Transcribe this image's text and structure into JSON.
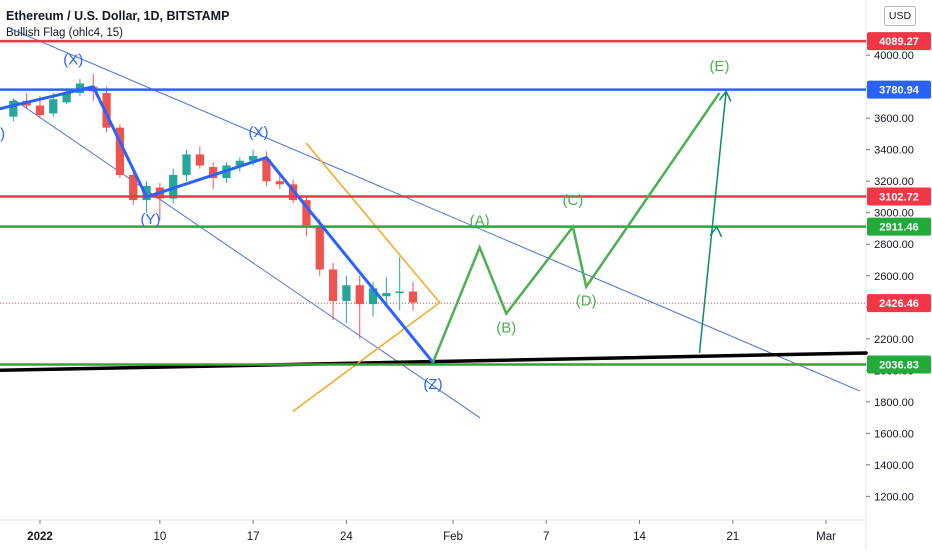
{
  "header": {
    "title": "Ethereum / U.S. Dollar, 1D, BITSTAMP",
    "indicator": "Bullish Flag (ohlc4, 15)",
    "currency": "USD"
  },
  "chart_data": {
    "type": "candlestick",
    "ylim": [
      1050,
      4350
    ],
    "xlim": [
      -2,
      63
    ],
    "y_ticks": [
      "1200.00",
      "1400.00",
      "1600.00",
      "1800.00",
      "2000.00",
      "2200.00",
      "2400.00",
      "2600.00",
      "2800.00",
      "3000.00",
      "3200.00",
      "3400.00",
      "3600.00",
      "3800.00",
      "4000.00"
    ],
    "x_ticks": [
      {
        "i": 1,
        "label": "2022",
        "bold": true
      },
      {
        "i": 10,
        "label": "10"
      },
      {
        "i": 17,
        "label": "17"
      },
      {
        "i": 24,
        "label": "24"
      },
      {
        "i": 32,
        "label": "Feb"
      },
      {
        "i": 39,
        "label": "7"
      },
      {
        "i": 46,
        "label": "14"
      },
      {
        "i": 53,
        "label": "21"
      },
      {
        "i": 60,
        "label": "Mar"
      }
    ],
    "candles": [
      {
        "i": -1,
        "o": 3610,
        "h": 3720,
        "l": 3580,
        "c": 3710
      },
      {
        "i": 0,
        "o": 3710,
        "h": 3760,
        "l": 3660,
        "c": 3680
      },
      {
        "i": 1,
        "o": 3680,
        "h": 3740,
        "l": 3600,
        "c": 3620
      },
      {
        "i": 2,
        "o": 3630,
        "h": 3760,
        "l": 3610,
        "c": 3720
      },
      {
        "i": 3,
        "o": 3700,
        "h": 3790,
        "l": 3690,
        "c": 3760
      },
      {
        "i": 4,
        "o": 3760,
        "h": 3850,
        "l": 3740,
        "c": 3820
      },
      {
        "i": 5,
        "o": 3800,
        "h": 3880,
        "l": 3710,
        "c": 3770
      },
      {
        "i": 6,
        "o": 3760,
        "h": 3800,
        "l": 3510,
        "c": 3540
      },
      {
        "i": 7,
        "o": 3540,
        "h": 3560,
        "l": 3220,
        "c": 3240
      },
      {
        "i": 8,
        "o": 3240,
        "h": 3290,
        "l": 3050,
        "c": 3080
      },
      {
        "i": 9,
        "o": 3080,
        "h": 3200,
        "l": 3000,
        "c": 3170
      },
      {
        "i": 10,
        "o": 3160,
        "h": 3190,
        "l": 2950,
        "c": 3090
      },
      {
        "i": 11,
        "o": 3090,
        "h": 3280,
        "l": 3060,
        "c": 3240
      },
      {
        "i": 12,
        "o": 3240,
        "h": 3400,
        "l": 3200,
        "c": 3370
      },
      {
        "i": 13,
        "o": 3370,
        "h": 3420,
        "l": 3280,
        "c": 3300
      },
      {
        "i": 14,
        "o": 3290,
        "h": 3320,
        "l": 3150,
        "c": 3220
      },
      {
        "i": 15,
        "o": 3220,
        "h": 3320,
        "l": 3190,
        "c": 3300
      },
      {
        "i": 16,
        "o": 3300,
        "h": 3350,
        "l": 3260,
        "c": 3330
      },
      {
        "i": 17,
        "o": 3330,
        "h": 3400,
        "l": 3300,
        "c": 3360
      },
      {
        "i": 18,
        "o": 3340,
        "h": 3390,
        "l": 3170,
        "c": 3200
      },
      {
        "i": 19,
        "o": 3200,
        "h": 3260,
        "l": 3150,
        "c": 3180
      },
      {
        "i": 20,
        "o": 3180,
        "h": 3210,
        "l": 3060,
        "c": 3080
      },
      {
        "i": 21,
        "o": 3080,
        "h": 3100,
        "l": 2850,
        "c": 2920
      },
      {
        "i": 22,
        "o": 2920,
        "h": 2960,
        "l": 2600,
        "c": 2640
      },
      {
        "i": 23,
        "o": 2640,
        "h": 2680,
        "l": 2320,
        "c": 2440
      },
      {
        "i": 24,
        "o": 2440,
        "h": 2600,
        "l": 2300,
        "c": 2540
      },
      {
        "i": 25,
        "o": 2540,
        "h": 2600,
        "l": 2200,
        "c": 2420
      },
      {
        "i": 26,
        "o": 2420,
        "h": 2560,
        "l": 2340,
        "c": 2520
      },
      {
        "i": 27,
        "o": 2470,
        "h": 2590,
        "l": 2400,
        "c": 2490
      },
      {
        "i": 28,
        "o": 2490,
        "h": 2720,
        "l": 2380,
        "c": 2500
      },
      {
        "i": 29,
        "o": 2500,
        "h": 2560,
        "l": 2380,
        "c": 2430
      }
    ],
    "horizontal_levels": [
      {
        "value": 4089.27,
        "label": "4089.27",
        "color": "#f23645"
      },
      {
        "value": 3780.94,
        "label": "3780.94",
        "color": "#2962ff"
      },
      {
        "value": 3102.72,
        "label": "3102.72",
        "color": "#f23645"
      },
      {
        "value": 2911.46,
        "label": "2911.46",
        "color": "#22ab3b"
      },
      {
        "value": 2036.83,
        "label": "2036.83",
        "color": "#22ab3b"
      }
    ],
    "price_marker": {
      "value": 2426.46,
      "label": "2426.46",
      "color": "#f23645"
    },
    "trendlines": [
      {
        "name": "upper-channel-line",
        "points": [
          [
            -1,
            4160
          ],
          [
            62.5,
            1870
          ]
        ],
        "color": "#4a72d8",
        "width": 1
      },
      {
        "name": "lower-channel-line",
        "points": [
          [
            -1,
            3720
          ],
          [
            34,
            1700
          ]
        ],
        "color": "#4a72d8",
        "width": 1
      },
      {
        "name": "support-trendline",
        "points": [
          [
            -2,
            2000
          ],
          [
            63,
            2110
          ]
        ],
        "color": "#000000",
        "width": 3.5
      },
      {
        "name": "triangle-upper-leg",
        "points": [
          [
            21,
            3440
          ],
          [
            31,
            2430
          ]
        ],
        "color": "#f5a623",
        "width": 1.5
      },
      {
        "name": "triangle-lower-leg",
        "points": [
          [
            20,
            1740
          ],
          [
            31,
            2430
          ]
        ],
        "color": "#f5a623",
        "width": 1.5
      }
    ],
    "wave_path": {
      "color": "#2962ff",
      "points": [
        [
          -2,
          3660
        ],
        [
          5,
          3800
        ],
        [
          9,
          3100
        ],
        [
          18,
          3350
        ],
        [
          30.5,
          2050
        ]
      ]
    },
    "projection_path": {
      "color": "#4caf50",
      "points": [
        [
          30.5,
          2050
        ],
        [
          34,
          2780
        ],
        [
          36,
          2360
        ],
        [
          41,
          2910
        ],
        [
          42,
          2530
        ],
        [
          52,
          3760
        ]
      ]
    },
    "projection_arrow": {
      "color": "#0f8a6e",
      "from": [
        50.5,
        2110
      ],
      "to": [
        52.5,
        3770
      ],
      "mid_chevron": [
        51.8,
        2910
      ]
    },
    "wave_labels": [
      {
        "text": ")",
        "i": -1.8,
        "v": 3470,
        "color": "#2962ff"
      },
      {
        "text": "(X)",
        "i": 3.5,
        "v": 3940,
        "color": "#2962ff"
      },
      {
        "text": "(Y)",
        "i": 9.3,
        "v": 2930,
        "color": "#2962ff"
      },
      {
        "text": "(X)",
        "i": 17.4,
        "v": 3480,
        "color": "#2962ff"
      },
      {
        "text": "(Z)",
        "i": 30.5,
        "v": 1880,
        "color": "#2962ff"
      },
      {
        "text": "(A)",
        "i": 34,
        "v": 2920,
        "color": "#4caf50"
      },
      {
        "text": "(B)",
        "i": 36,
        "v": 2240,
        "color": "#4caf50"
      },
      {
        "text": "(C)",
        "i": 41,
        "v": 3050,
        "color": "#4caf50"
      },
      {
        "text": "(D)",
        "i": 42,
        "v": 2410,
        "color": "#4caf50"
      },
      {
        "text": "(E)",
        "i": 52,
        "v": 3900,
        "color": "#4caf50"
      }
    ],
    "colors": {
      "up": "#26a69a",
      "down": "#ef5350",
      "axis_text": "#131722",
      "axis_line": "#e0e3eb"
    }
  }
}
